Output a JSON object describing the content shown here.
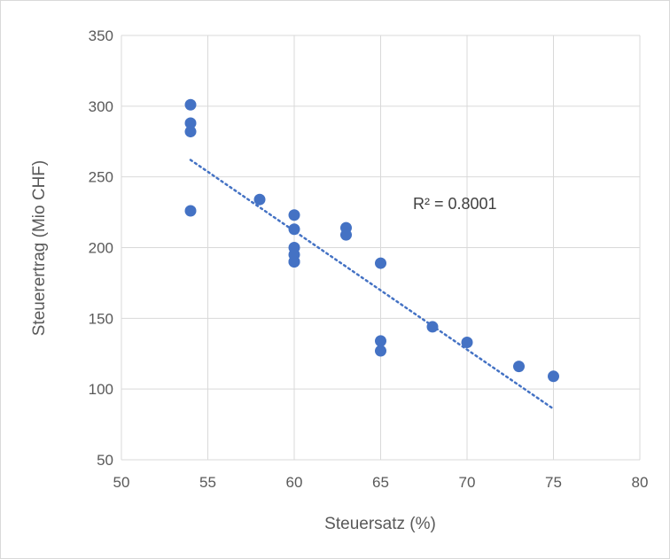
{
  "chart_data": {
    "type": "scatter",
    "title": "",
    "xlabel": "Steuersatz (%)",
    "ylabel": "Steuerertrag (Mio CHF)",
    "xlim": [
      50,
      80
    ],
    "ylim": [
      50,
      350
    ],
    "xticks": [
      "50",
      "55",
      "60",
      "65",
      "70",
      "75",
      "80"
    ],
    "yticks": [
      "50",
      "100",
      "150",
      "200",
      "250",
      "300",
      "350"
    ],
    "grid": true,
    "legend": "none",
    "series": [
      {
        "x": [
          54,
          54,
          54,
          54,
          58,
          60,
          60,
          60,
          60,
          60,
          60,
          63,
          63,
          65,
          65,
          65,
          68,
          70,
          73,
          75
        ],
        "y": [
          301,
          288,
          282,
          226,
          234,
          223,
          213,
          200,
          195,
          190,
          190,
          214,
          209,
          189,
          134,
          127,
          144,
          133,
          116,
          109
        ],
        "color": "#4472c4"
      }
    ],
    "trendline": {
      "type": "linear",
      "x_range": [
        54,
        75
      ],
      "y_range": [
        262,
        86
      ],
      "color": "#4472c4",
      "style": "dotted"
    },
    "annotations": [
      {
        "text": "R² = 0.8001"
      }
    ]
  }
}
